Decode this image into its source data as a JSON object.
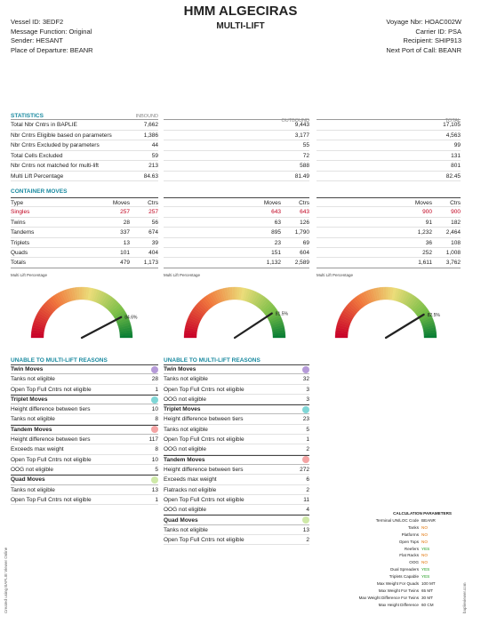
{
  "header": {
    "title": "HMM ALGECIRAS",
    "subtitle": "MULTI-LIFT",
    "left": [
      "Vessel ID: 3EDF2",
      "Message Function: Original",
      "Sender: HESANT",
      "Place of Departure: BEANR"
    ],
    "right": [
      "Voyage Nbr: HOAC002W",
      "Carrier ID: PSA",
      "Recipient: SHIP913",
      "Next Port of Call: BEANR"
    ]
  },
  "statistics": {
    "heading": "STATISTICS",
    "col_inbound": "INBOUND",
    "col_outbound": "OUTBOUND",
    "col_total": "TOTAL",
    "rows": [
      {
        "label": "Total Nbr Cntrs in BAPLIE",
        "inbound": "7,662",
        "outbound": "9,443",
        "total": "17,105"
      },
      {
        "label": "Nbr Cntrs Eligible based on parameters",
        "inbound": "1,386",
        "outbound": "3,177",
        "total": "4,563"
      },
      {
        "label": "Nbr Cntrs Excluded by parameters",
        "inbound": "44",
        "outbound": "55",
        "total": "99"
      },
      {
        "label": "Total Cells Excluded",
        "inbound": "59",
        "outbound": "72",
        "total": "131"
      },
      {
        "label": "Nbr Cntrs not matched for multi-lift",
        "inbound": "213",
        "outbound": "588",
        "total": "801"
      },
      {
        "label": "Multi Lift Percentage",
        "inbound": "84.63",
        "outbound": "81.49",
        "total": "82.45"
      }
    ]
  },
  "container_moves": {
    "heading": "CONTAINER MOVES",
    "type_label": "Type",
    "moves_label": "Moves",
    "ctrs_label": "Ctrs",
    "types": [
      "Singles",
      "Twins",
      "Tandems",
      "Triplets",
      "Quads",
      "Totals"
    ],
    "inbound": [
      [
        "257",
        "257"
      ],
      [
        "28",
        "56"
      ],
      [
        "337",
        "674"
      ],
      [
        "13",
        "39"
      ],
      [
        "101",
        "404"
      ],
      [
        "479",
        "1,173"
      ]
    ],
    "outbound": [
      [
        "643",
        "643"
      ],
      [
        "63",
        "126"
      ],
      [
        "895",
        "1,790"
      ],
      [
        "23",
        "69"
      ],
      [
        "151",
        "604"
      ],
      [
        "1,132",
        "2,589"
      ]
    ],
    "total": [
      [
        "900",
        "900"
      ],
      [
        "91",
        "182"
      ],
      [
        "1,232",
        "2,464"
      ],
      [
        "36",
        "108"
      ],
      [
        "252",
        "1,008"
      ],
      [
        "1,611",
        "3,762"
      ]
    ]
  },
  "gauges": {
    "label": "Multi Lift Percentage",
    "values": [
      84.6,
      81.5,
      82.5
    ],
    "texts": [
      "84.6%",
      "81.5%",
      "82.5%"
    ]
  },
  "reasons_in": {
    "heading": "UNABLE TO MULTI-LIFT REASONS",
    "groups": [
      {
        "title": "Twin Moves",
        "color": "#b59ad8",
        "items": [
          [
            "Tanks not eligible",
            "28"
          ],
          [
            "Open Top Full Cntrs not eligible",
            "1"
          ]
        ]
      },
      {
        "title": "Triplet Moves",
        "color": "#7fd6d6",
        "items": [
          [
            "Height difference between tiers",
            "10"
          ],
          [
            "Tanks not eligible",
            "8"
          ]
        ]
      },
      {
        "title": "Tandem Moves",
        "color": "#f4a3a3",
        "items": [
          [
            "Height difference between tiers",
            "117"
          ],
          [
            "Exceeds max weight",
            "8"
          ],
          [
            "Open Top Full Cntrs not eligible",
            "10"
          ],
          [
            "OOG not eligible",
            "5"
          ]
        ]
      },
      {
        "title": "Quad Moves",
        "color": "#cfe9a8",
        "items": [
          [
            "Tanks not eligible",
            "13"
          ],
          [
            "Open Top Full Cntrs not eligible",
            "1"
          ]
        ]
      }
    ]
  },
  "reasons_out": {
    "heading": "UNABLE TO MULTI-LIFT REASONS",
    "groups": [
      {
        "title": "Twin Moves",
        "color": "#b59ad8",
        "items": [
          [
            "Tanks not eligible",
            "32"
          ],
          [
            "Open Top Full Cntrs not eligible",
            "3"
          ],
          [
            "OOG not eligible",
            "3"
          ]
        ]
      },
      {
        "title": "Triplet Moves",
        "color": "#7fd6d6",
        "items": [
          [
            "Height difference between tiers",
            "23"
          ],
          [
            "Tanks not eligible",
            "5"
          ],
          [
            "Open Top Full Cntrs not eligible",
            "1"
          ],
          [
            "OOG not eligible",
            "2"
          ]
        ]
      },
      {
        "title": "Tandem Moves",
        "color": "#f4a3a3",
        "items": [
          [
            "Height difference between tiers",
            "272"
          ],
          [
            "Exceeds max weight",
            "6"
          ],
          [
            "Flatracks not eligible",
            "2"
          ],
          [
            "Open Top Full Cntrs not eligible",
            "11"
          ],
          [
            "OOG not eligible",
            "4"
          ]
        ]
      },
      {
        "title": "Quad Moves",
        "color": "#cfe9a8",
        "items": [
          [
            "Tanks not eligible",
            "13"
          ],
          [
            "Open Top Full Cntrs not eligible",
            "2"
          ]
        ]
      }
    ]
  },
  "calc_params": {
    "heading": "CALCULATION PARAMETERS",
    "rows": [
      [
        "Terminal UN/LOC Code",
        "BEANR",
        ""
      ],
      [
        "Tanks",
        "NO",
        "no"
      ],
      [
        "Platforms",
        "NO",
        "no"
      ],
      [
        "Open Tops",
        "NO",
        "no"
      ],
      [
        "Reefers",
        "YES",
        "yes"
      ],
      [
        "Flat Racks",
        "NO",
        "no"
      ],
      [
        "OOG",
        "NO",
        "no"
      ],
      [
        "Dual Spreaders",
        "YES",
        "yes"
      ],
      [
        "Triplets Capable",
        "YES",
        "yes"
      ],
      [
        "Max Weight For Quads",
        "100 MT",
        ""
      ],
      [
        "Max Weight For Twins",
        "65 MT",
        ""
      ],
      [
        "Max Weight Difference For Twins",
        "30 MT",
        ""
      ],
      [
        "Max Height Difference",
        "60 CM",
        ""
      ]
    ]
  },
  "footer": {
    "left_vertical": "Created using BAPLIE Viewer Online",
    "right_vertical": "baplieviewer.com"
  }
}
